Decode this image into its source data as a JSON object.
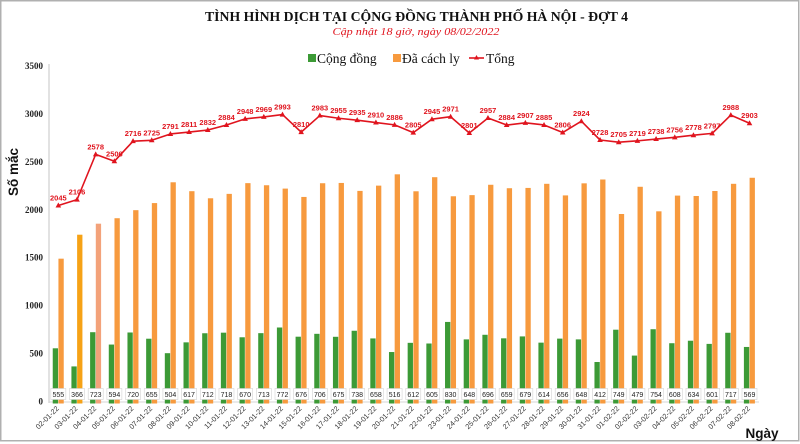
{
  "chart_data": {
    "type": "bar",
    "title": "TÌNH HÌNH DỊCH TẠI CỘNG ĐỒNG THÀNH PHỐ HÀ NỘI - ĐỢT 4",
    "subtitle": "Cập nhật 18 giờ, ngày  08/02/2022",
    "xlabel": "Ngày",
    "ylabel": "Số mắc",
    "ylim": [
      0,
      3500
    ],
    "yticks": [
      0,
      500,
      1000,
      1500,
      2000,
      2500,
      3000,
      3500
    ],
    "grid": false,
    "legend_position": "top",
    "categories": [
      "02-01-22",
      "03-01-22",
      "04-01-22",
      "05-01-22",
      "06-01-22",
      "07-01-22",
      "08-01-22",
      "09-01-22",
      "10-01-22",
      "11-01-22",
      "12-01-22",
      "13-01-22",
      "14-01-22",
      "15-01-22",
      "16-01-22",
      "17-01-22",
      "18-01-22",
      "19-01-22",
      "20-01-22",
      "21-01-22",
      "22-01-22",
      "23-01-22",
      "24-01-22",
      "25-01-22",
      "26-01-22",
      "27-01-22",
      "28-01-22",
      "29-01-22",
      "30-01-22",
      "31-01-22",
      "01-02-22",
      "02-02-22",
      "03-02-22",
      "04-02-22",
      "05-02-22",
      "06-02-22",
      "07-02-22",
      "08-02-22"
    ],
    "series": [
      {
        "name": "Cộng đồng",
        "type": "bar",
        "color": "#3c9a36",
        "data_labels": true,
        "values": [
          555,
          366,
          723,
          594,
          720,
          655,
          504,
          617,
          712,
          718,
          670,
          713,
          772,
          676,
          706,
          675,
          738,
          658,
          516,
          612,
          605,
          830,
          648,
          696,
          659,
          679,
          614,
          656,
          648,
          412,
          749,
          479,
          754,
          608,
          634,
          601,
          717,
          569
        ]
      },
      {
        "name": "Đã cách ly",
        "type": "bar",
        "color": "#f79a3e",
        "data_labels": false,
        "point_colors": {
          "03-01-22": "#f6a216",
          "04-01-22": "#f3a27a"
        },
        "values": [
          1490,
          1740,
          1855,
          1912,
          1996,
          2070,
          2287,
          2194,
          2120,
          2166,
          2278,
          2256,
          2221,
          2134,
          2277,
          2280,
          2197,
          2252,
          2370,
          2193,
          2340,
          2141,
          2153,
          2261,
          2225,
          2228,
          2271,
          2150,
          2276,
          2316,
          1956,
          2240,
          1984,
          2148,
          2144,
          2196,
          2271,
          2334
        ]
      },
      {
        "name": "Tổng",
        "type": "line",
        "color": "#e0141e",
        "marker": "triangle",
        "data_labels": true,
        "values": [
          2045,
          2106,
          2578,
          2506,
          2716,
          2725,
          2791,
          2811,
          2832,
          2884,
          2948,
          2969,
          2993,
          2810,
          2983,
          2955,
          2935,
          2910,
          2886,
          2805,
          2945,
          2971,
          2801,
          2957,
          2884,
          2907,
          2885,
          2806,
          2924,
          2728,
          2705,
          2719,
          2738,
          2756,
          2778,
          2797,
          2988,
          2903
        ]
      }
    ]
  }
}
